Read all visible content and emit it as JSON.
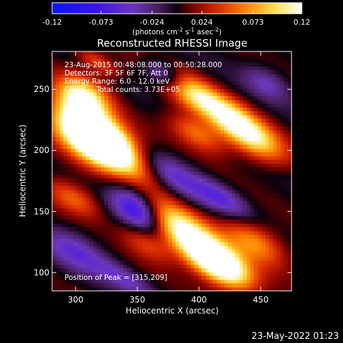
{
  "chart_data": {
    "type": "heatmap",
    "title": "Reconstructed RHESSI Image",
    "xlabel": "Heliocentric X (arcsec)",
    "ylabel": "Heliocentric Y (arcsec)",
    "xlim": [
      281,
      475
    ],
    "ylim": [
      85,
      281
    ],
    "x_ticks": [
      300,
      350,
      400,
      450
    ],
    "y_ticks": [
      100,
      150,
      200,
      250
    ],
    "colorbar": {
      "ticks": [
        "-0.12",
        "-0.073",
        "-0.024",
        "0.024",
        "0.073",
        "0.12"
      ],
      "tick_values": [
        -0.12,
        -0.073,
        -0.024,
        0.024,
        0.073,
        0.12
      ],
      "range": [
        -0.12,
        0.12
      ],
      "unit_label_parts": [
        "(photons cm",
        "-2",
        " s",
        "-1",
        " asec",
        "-2",
        ")"
      ]
    },
    "annotations": [
      "23-Aug-2015 00:48:08.000 to 00:50:28.000",
      "Detectors: 3F 5F 6F 7F, Att 0",
      "Energy Range: 6.0 - 12.0 keV",
      "Clean     Total counts: 3.73E+05"
    ],
    "peak_text": "Position of Peak = [315,209]",
    "peak": [
      315,
      209
    ],
    "blobs": [
      {
        "x": 313,
        "y": 213,
        "sx": 22,
        "sy": 12,
        "angle": -33,
        "amp": 0.19
      },
      {
        "x": 333,
        "y": 199,
        "sx": 28,
        "sy": 11,
        "angle": -33,
        "amp": 0.11
      },
      {
        "x": 306,
        "y": 243,
        "sx": 16,
        "sy": 11,
        "angle": -30,
        "amp": 0.11
      },
      {
        "x": 395,
        "y": 247,
        "sx": 28,
        "sy": 9,
        "angle": -32,
        "amp": 0.1
      },
      {
        "x": 438,
        "y": 215,
        "sx": 24,
        "sy": 10,
        "angle": -35,
        "amp": 0.12
      },
      {
        "x": 398,
        "y": 214,
        "sx": 18,
        "sy": 8,
        "angle": -32,
        "amp": 0.06
      },
      {
        "x": 415,
        "y": 108,
        "sx": 22,
        "sy": 10,
        "angle": -33,
        "amp": 0.17
      },
      {
        "x": 445,
        "y": 125,
        "sx": 20,
        "sy": 10,
        "angle": -32,
        "amp": 0.07
      },
      {
        "x": 382,
        "y": 138,
        "sx": 26,
        "sy": 11,
        "angle": -33,
        "amp": 0.11
      },
      {
        "x": 356,
        "y": 125,
        "sx": 18,
        "sy": 8,
        "angle": -35,
        "amp": 0.05
      },
      {
        "x": 298,
        "y": 161,
        "sx": 18,
        "sy": 8,
        "angle": -30,
        "amp": 0.06
      },
      {
        "x": 318,
        "y": 272,
        "sx": 14,
        "sy": 5,
        "angle": -30,
        "amp": 0.05
      },
      {
        "x": 351,
        "y": 151,
        "sx": 18,
        "sy": 10,
        "angle": -40,
        "amp": -0.11
      },
      {
        "x": 372,
        "y": 262,
        "sx": 14,
        "sy": 7,
        "angle": -30,
        "amp": -0.09
      },
      {
        "x": 375,
        "y": 182,
        "sx": 26,
        "sy": 9,
        "angle": -33,
        "amp": -0.06
      },
      {
        "x": 300,
        "y": 117,
        "sx": 20,
        "sy": 10,
        "angle": -30,
        "amp": -0.05
      },
      {
        "x": 420,
        "y": 160,
        "sx": 18,
        "sy": 7,
        "angle": -33,
        "amp": -0.05
      },
      {
        "x": 455,
        "y": 255,
        "sx": 14,
        "sy": 8,
        "angle": -30,
        "amp": -0.04
      },
      {
        "x": 340,
        "y": 95,
        "sx": 18,
        "sy": 6,
        "angle": -30,
        "amp": -0.04
      }
    ]
  },
  "footer": {
    "date": "23-May-2022 01:23"
  }
}
